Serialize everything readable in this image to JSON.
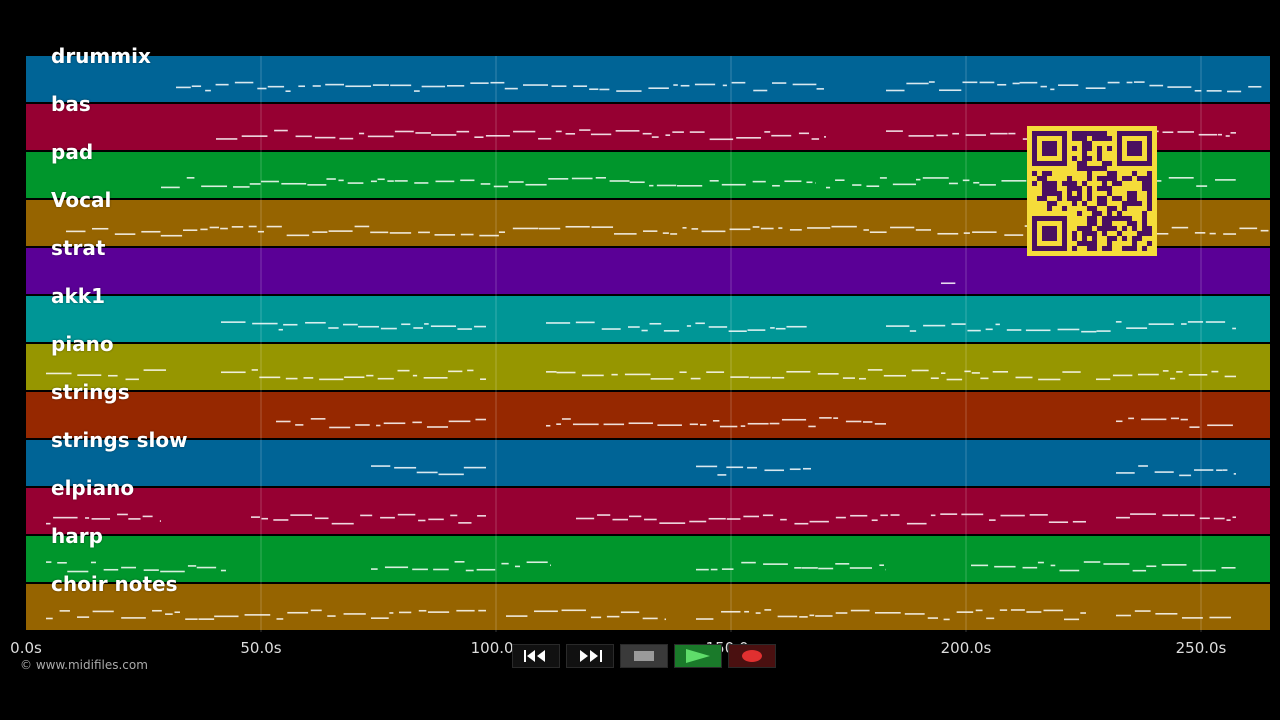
{
  "tracks": [
    {
      "name": "drummix",
      "color": "#006496"
    },
    {
      "name": "bas",
      "color": "#960032"
    },
    {
      "name": "pad",
      "color": "#00962c"
    },
    {
      "name": "Vocal",
      "color": "#966400"
    },
    {
      "name": "strat",
      "color": "#5a0096"
    },
    {
      "name": "akk1",
      "color": "#009696"
    },
    {
      "name": "piano",
      "color": "#969600"
    },
    {
      "name": "strings",
      "color": "#962800"
    },
    {
      "name": "strings slow",
      "color": "#006496"
    },
    {
      "name": "elpiano",
      "color": "#960032"
    },
    {
      "name": "harp",
      "color": "#00962c"
    },
    {
      "name": "choir notes",
      "color": "#966400"
    }
  ],
  "timeline": {
    "ticks": [
      "0.0s",
      "50.0s",
      "100.0s",
      "150.0s",
      "200.0s",
      "250.0s"
    ]
  },
  "copyright": "© www.midifiles.com",
  "transport": {
    "rewind": "rewind-icon",
    "fast_forward": "fast-forward-icon",
    "stop": "stop-icon",
    "play": "play-icon",
    "record": "record-icon"
  },
  "accent_colors": {
    "qr_background": "#f5dc3a",
    "qr_modules": "#4a1060"
  }
}
